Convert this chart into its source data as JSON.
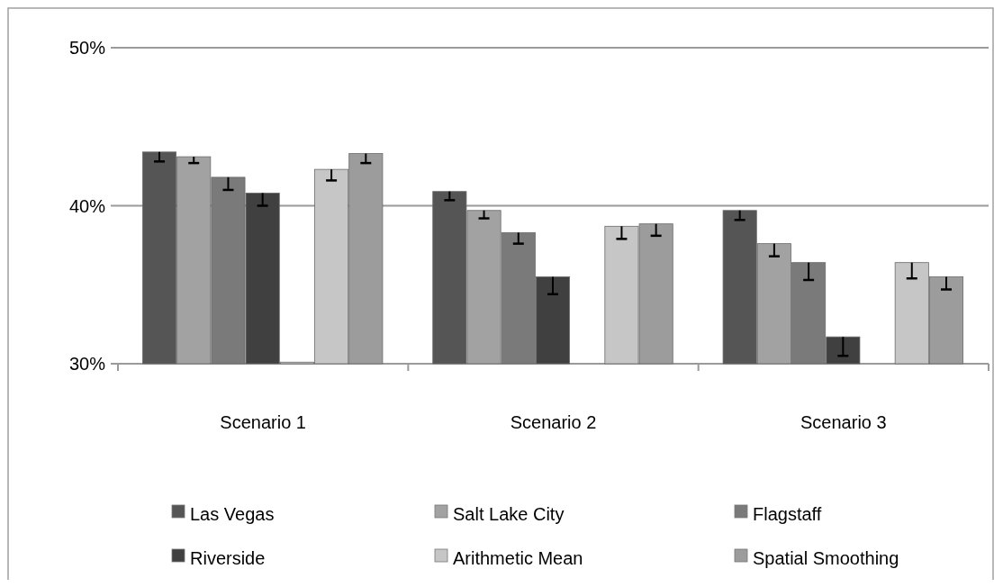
{
  "chart_data": {
    "type": "bar",
    "categories": [
      "Scenario 1",
      "Scenario 2",
      "Scenario 3"
    ],
    "series": [
      {
        "name": "Las Vegas",
        "color": "#555555",
        "values": [
          43.4,
          40.9,
          39.7
        ],
        "errors": [
          [
            42.8,
            43.4
          ],
          [
            40.35,
            40.9
          ],
          [
            39.1,
            39.7
          ]
        ]
      },
      {
        "name": "Salt Lake City",
        "color": "#a2a2a2",
        "values": [
          43.1,
          39.7,
          37.6
        ],
        "errors": [
          [
            42.7,
            43.1
          ],
          [
            39.2,
            39.7
          ],
          [
            36.8,
            37.6
          ]
        ]
      },
      {
        "name": "Flagstaff",
        "color": "#7a7a7a",
        "values": [
          41.8,
          38.3,
          36.4
        ],
        "errors": [
          [
            41.0,
            41.8
          ],
          [
            37.6,
            38.3
          ],
          [
            35.3,
            36.4
          ]
        ]
      },
      {
        "name": "Riverside",
        "color": "#404040",
        "values": [
          40.8,
          35.5,
          31.7
        ],
        "errors": [
          [
            40.0,
            40.8
          ],
          [
            34.4,
            35.5
          ],
          [
            30.5,
            31.7
          ]
        ]
      },
      {
        "color": "#c8c8c8",
        "values": [
          30.1,
          null,
          null
        ]
      },
      {
        "name": "Arithmetic Mean",
        "color": "#c6c6c6",
        "values": [
          42.3,
          38.7,
          36.4
        ],
        "errors": [
          [
            41.6,
            42.3
          ],
          [
            37.9,
            38.7
          ],
          [
            35.4,
            36.4
          ]
        ]
      },
      {
        "name": "Spatial Smoothing",
        "color": "#9c9c9c",
        "values": [
          43.3,
          38.85,
          35.5
        ],
        "errors": [
          [
            42.7,
            43.3
          ],
          [
            38.1,
            38.85
          ],
          [
            34.7,
            35.5
          ]
        ]
      }
    ],
    "ylim": [
      30,
      50
    ],
    "yticks": [
      {
        "value": 30,
        "label": "30%"
      },
      {
        "value": 40,
        "label": "40%"
      },
      {
        "value": 50,
        "label": "50%"
      }
    ],
    "grid": "y",
    "legend": "bottom"
  }
}
